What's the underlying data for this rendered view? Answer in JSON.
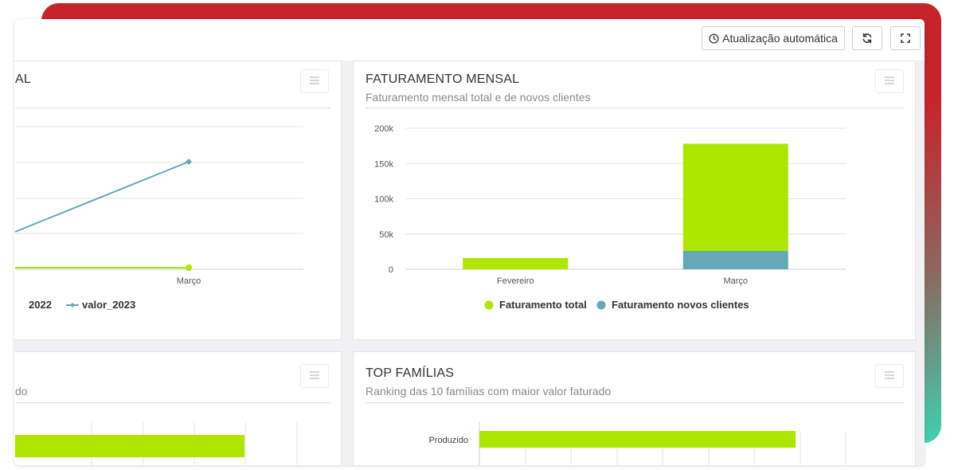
{
  "toolbar": {
    "auto_update_label": "Atualização automática",
    "refresh_icon": "refresh-icon",
    "fullscreen_icon": "fullscreen-icon"
  },
  "cards": {
    "left_top": {
      "title_fragment": "AL",
      "legend_fragment": "2022",
      "legend_series": "valor_2023"
    },
    "faturamento": {
      "title": "FATURAMENTO MENSAL",
      "subtitle": "Faturamento mensal total e de novos clientes"
    },
    "left_bottom": {
      "subtitle_fragment": "do"
    },
    "top_familias": {
      "title": "TOP FAMÍLIAS",
      "subtitle": "Ranking das 10 famílias com maior valor faturado"
    }
  },
  "colors": {
    "green": "#aee600",
    "teal": "#65a9b7",
    "grid": "#e6e6e6"
  },
  "chart_data": [
    {
      "type": "line",
      "categories": [
        "Março"
      ],
      "series": [
        {
          "name": "2022",
          "color": "#aee600"
        },
        {
          "name": "valor_2023",
          "color": "#65a9b7"
        }
      ]
    },
    {
      "type": "bar",
      "stacked": true,
      "categories": [
        "Fevereiro",
        "Março"
      ],
      "series": [
        {
          "name": "Faturamento total",
          "color": "#aee600",
          "values": [
            16000,
            152000
          ]
        },
        {
          "name": "Faturamento novos clientes",
          "color": "#65a9b7",
          "values": [
            0,
            26000
          ]
        }
      ],
      "yticks": [
        "0",
        "50k",
        "100k",
        "150k",
        "200k"
      ],
      "ytick_values": [
        0,
        50000,
        100000,
        150000,
        200000
      ],
      "ylim": [
        0,
        200000
      ],
      "legend": "bottom"
    },
    {
      "type": "bar",
      "orientation": "horizontal",
      "categories": [
        "Produzido"
      ],
      "series": [
        {
          "color": "#aee600"
        }
      ]
    }
  ]
}
